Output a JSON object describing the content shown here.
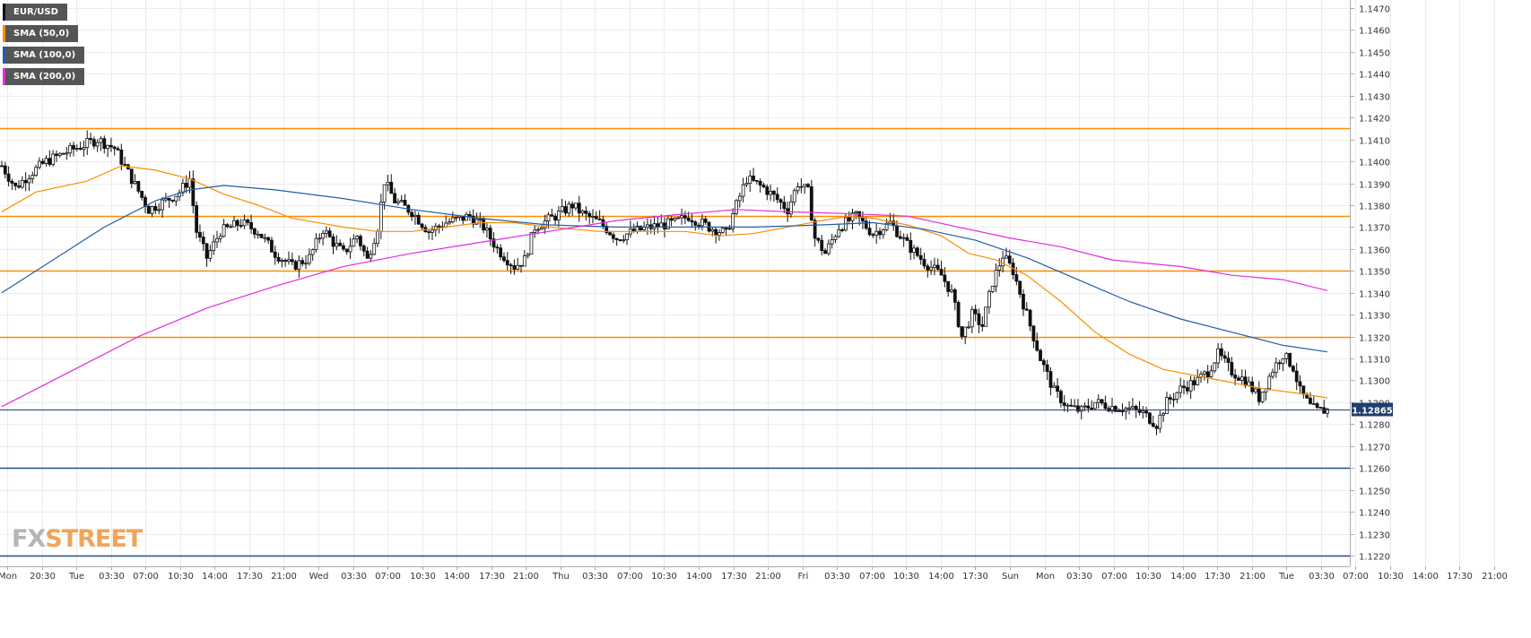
{
  "chart_data": {
    "type": "candlestick",
    "symbol": "EUR/USD",
    "last_price": "1.12865",
    "ylim": [
      1.122,
      1.147
    ],
    "y_ticks": [
      "1.1470",
      "1.1460",
      "1.1450",
      "1.1440",
      "1.1430",
      "1.1420",
      "1.1410",
      "1.1400",
      "1.1390",
      "1.1380",
      "1.1370",
      "1.1360",
      "1.1350",
      "1.1340",
      "1.1330",
      "1.1320",
      "1.1310",
      "1.1300",
      "1.1290",
      "1.1280",
      "1.1270",
      "1.1260",
      "1.1250",
      "1.1240",
      "1.1230",
      "1.1220"
    ],
    "x_ticks": [
      "Mon",
      "20:30",
      "Tue",
      "03:30",
      "07:00",
      "10:30",
      "14:00",
      "17:30",
      "21:00",
      "Wed",
      "03:30",
      "07:00",
      "10:30",
      "14:00",
      "17:30",
      "21:00",
      "Thu",
      "03:30",
      "07:00",
      "10:30",
      "14:00",
      "17:30",
      "21:00",
      "Fri",
      "03:30",
      "07:00",
      "10:30",
      "14:00",
      "17:30",
      "Sun",
      "Mon",
      "03:30",
      "07:00",
      "10:30",
      "14:00",
      "17:30",
      "21:00",
      "Tue",
      "03:30",
      "07:00",
      "10:30",
      "14:00",
      "17:30",
      "21:00"
    ],
    "horizontal_levels": [
      {
        "value": 1.1415,
        "color": "#ff8c00"
      },
      {
        "value": 1.1375,
        "color": "#ff8c00"
      },
      {
        "value": 1.135,
        "color": "#ff8c00"
      },
      {
        "value": 1.132,
        "color": "#ff8c00"
      },
      {
        "value": 1.126,
        "color": "#1f4e8c"
      },
      {
        "value": 1.122,
        "color": "#1f4e8c"
      }
    ],
    "price_path": [
      [
        0,
        1.1398
      ],
      [
        4,
        1.1388
      ],
      [
        8,
        1.1394
      ],
      [
        13,
        1.14
      ],
      [
        20,
        1.1405
      ],
      [
        28,
        1.141
      ],
      [
        33,
        1.1406
      ],
      [
        38,
        1.1392
      ],
      [
        43,
        1.1378
      ],
      [
        48,
        1.1382
      ],
      [
        52,
        1.1386
      ],
      [
        55,
        1.1392
      ],
      [
        57,
        1.1368
      ],
      [
        60,
        1.1356
      ],
      [
        64,
        1.1368
      ],
      [
        70,
        1.1372
      ],
      [
        75,
        1.1368
      ],
      [
        80,
        1.1358
      ],
      [
        85,
        1.1352
      ],
      [
        90,
        1.1356
      ],
      [
        94,
        1.1369
      ],
      [
        97,
        1.1363
      ],
      [
        100,
        1.1358
      ],
      [
        104,
        1.1366
      ],
      [
        107,
        1.1355
      ],
      [
        110,
        1.137
      ],
      [
        112,
        1.1391
      ],
      [
        115,
        1.1382
      ],
      [
        120,
        1.1377
      ],
      [
        125,
        1.1368
      ],
      [
        130,
        1.1372
      ],
      [
        137,
        1.1375
      ],
      [
        141,
        1.137
      ],
      [
        145,
        1.136
      ],
      [
        150,
        1.1352
      ],
      [
        153,
        1.1355
      ],
      [
        156,
        1.137
      ],
      [
        162,
        1.1375
      ],
      [
        167,
        1.138
      ],
      [
        170,
        1.1376
      ],
      [
        175,
        1.1372
      ],
      [
        180,
        1.1365
      ],
      [
        185,
        1.1368
      ],
      [
        190,
        1.137
      ],
      [
        197,
        1.1372
      ],
      [
        201,
        1.1375
      ],
      [
        207,
        1.137
      ],
      [
        212,
        1.1367
      ],
      [
        215,
        1.138
      ],
      [
        218,
        1.1392
      ],
      [
        223,
        1.1388
      ],
      [
        226,
        1.1384
      ],
      [
        230,
        1.1378
      ],
      [
        233,
        1.139
      ],
      [
        236,
        1.1386
      ],
      [
        238,
        1.1365
      ],
      [
        241,
        1.1358
      ],
      [
        245,
        1.137
      ],
      [
        250,
        1.1375
      ],
      [
        255,
        1.1367
      ],
      [
        260,
        1.1372
      ],
      [
        265,
        1.1362
      ],
      [
        270,
        1.1354
      ],
      [
        275,
        1.1348
      ],
      [
        278,
        1.134
      ],
      [
        281,
        1.132
      ],
      [
        284,
        1.133
      ],
      [
        287,
        1.1325
      ],
      [
        290,
        1.1345
      ],
      [
        293,
        1.1357
      ],
      [
        296,
        1.135
      ],
      [
        300,
        1.133
      ],
      [
        304,
        1.131
      ],
      [
        308,
        1.1295
      ],
      [
        312,
        1.1288
      ],
      [
        316,
        1.1286
      ],
      [
        320,
        1.129
      ],
      [
        325,
        1.1288
      ],
      [
        330,
        1.1287
      ],
      [
        334,
        1.1285
      ],
      [
        338,
        1.128
      ],
      [
        341,
        1.129
      ],
      [
        345,
        1.1296
      ],
      [
        350,
        1.13
      ],
      [
        353,
        1.1304
      ],
      [
        356,
        1.1312
      ],
      [
        360,
        1.1304
      ],
      [
        364,
        1.13
      ],
      [
        368,
        1.1292
      ],
      [
        372,
        1.1305
      ],
      [
        375,
        1.1312
      ],
      [
        378,
        1.1306
      ],
      [
        380,
        1.1295
      ],
      [
        383,
        1.1288
      ],
      [
        385,
        1.1286
      ],
      [
        388,
        1.12865
      ]
    ],
    "series": [
      {
        "name": "SMA (50,0)",
        "color": "#ff8c00",
        "values": [
          [
            0,
            1.1377
          ],
          [
            10,
            1.1386
          ],
          [
            25,
            1.1391
          ],
          [
            35,
            1.1398
          ],
          [
            45,
            1.1396
          ],
          [
            55,
            1.1392
          ],
          [
            65,
            1.1385
          ],
          [
            75,
            1.138
          ],
          [
            85,
            1.1374
          ],
          [
            100,
            1.137
          ],
          [
            110,
            1.1368
          ],
          [
            120,
            1.1368
          ],
          [
            130,
            1.137
          ],
          [
            140,
            1.1372
          ],
          [
            150,
            1.1372
          ],
          [
            160,
            1.137
          ],
          [
            175,
            1.1368
          ],
          [
            190,
            1.1368
          ],
          [
            200,
            1.1368
          ],
          [
            210,
            1.1366
          ],
          [
            220,
            1.1367
          ],
          [
            230,
            1.137
          ],
          [
            240,
            1.1373
          ],
          [
            248,
            1.1375
          ],
          [
            255,
            1.1374
          ],
          [
            265,
            1.1371
          ],
          [
            275,
            1.1366
          ],
          [
            283,
            1.1358
          ],
          [
            291,
            1.1355
          ],
          [
            300,
            1.1348
          ],
          [
            310,
            1.1336
          ],
          [
            320,
            1.1322
          ],
          [
            330,
            1.1312
          ],
          [
            340,
            1.1305
          ],
          [
            350,
            1.1302
          ],
          [
            360,
            1.1299
          ],
          [
            370,
            1.1296
          ],
          [
            380,
            1.1294
          ],
          [
            388,
            1.1292
          ]
        ]
      },
      {
        "name": "SMA (100,0)",
        "color": "#1f5fa6",
        "values": [
          [
            0,
            1.134
          ],
          [
            15,
            1.1355
          ],
          [
            30,
            1.137
          ],
          [
            45,
            1.1382
          ],
          [
            55,
            1.1387
          ],
          [
            65,
            1.1389
          ],
          [
            80,
            1.1387
          ],
          [
            100,
            1.1383
          ],
          [
            120,
            1.1378
          ],
          [
            140,
            1.1374
          ],
          [
            160,
            1.1371
          ],
          [
            180,
            1.137
          ],
          [
            200,
            1.137
          ],
          [
            220,
            1.137
          ],
          [
            240,
            1.1371
          ],
          [
            255,
            1.1372
          ],
          [
            270,
            1.1369
          ],
          [
            285,
            1.1364
          ],
          [
            300,
            1.1356
          ],
          [
            315,
            1.1346
          ],
          [
            330,
            1.1336
          ],
          [
            345,
            1.1328
          ],
          [
            360,
            1.1322
          ],
          [
            375,
            1.1316
          ],
          [
            388,
            1.1313
          ]
        ]
      },
      {
        "name": "SMA (200,0)",
        "color": "#e12be1",
        "values": [
          [
            0,
            1.1288
          ],
          [
            20,
            1.1304
          ],
          [
            40,
            1.132
          ],
          [
            60,
            1.1333
          ],
          [
            80,
            1.1343
          ],
          [
            100,
            1.1352
          ],
          [
            120,
            1.1358
          ],
          [
            140,
            1.1363
          ],
          [
            160,
            1.1368
          ],
          [
            180,
            1.1373
          ],
          [
            200,
            1.1376
          ],
          [
            215,
            1.1378
          ],
          [
            230,
            1.1377
          ],
          [
            250,
            1.1376
          ],
          [
            265,
            1.1375
          ],
          [
            280,
            1.137
          ],
          [
            295,
            1.1365
          ],
          [
            310,
            1.1361
          ],
          [
            325,
            1.1355
          ],
          [
            345,
            1.1352
          ],
          [
            360,
            1.1348
          ],
          [
            375,
            1.1346
          ],
          [
            388,
            1.1341
          ]
        ]
      }
    ]
  },
  "legend": [
    {
      "label": "EUR/USD",
      "color": "#111111"
    },
    {
      "label": "SMA (50,0)",
      "color": "#ff8c00"
    },
    {
      "label": "SMA (100,0)",
      "color": "#1f5fa6"
    },
    {
      "label": "SMA (200,0)",
      "color": "#e12be1"
    }
  ],
  "logo": {
    "part1": "FX",
    "part2": "STREET"
  }
}
